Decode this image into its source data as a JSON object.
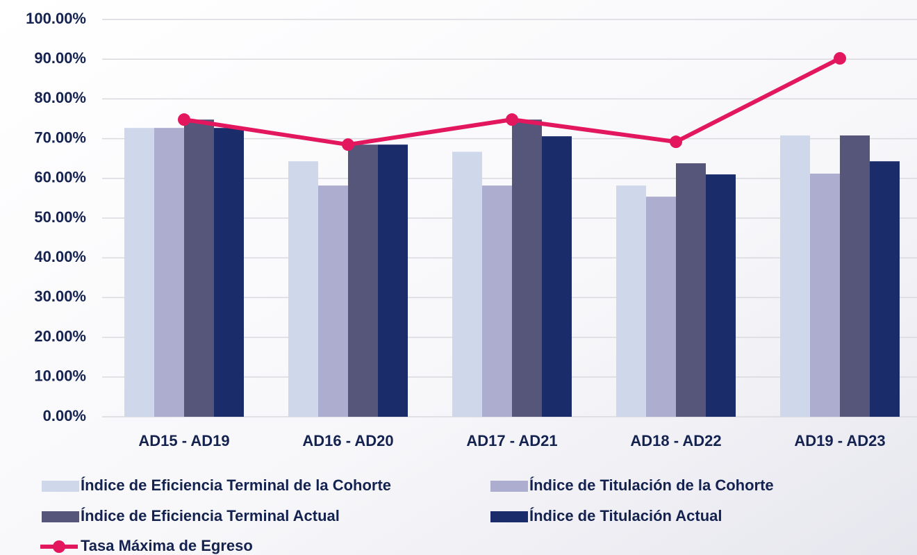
{
  "chart_data": {
    "type": "bar",
    "categories": [
      "AD15 - AD19",
      "AD16 - AD20",
      "AD17 - AD21",
      "AD18 - AD22",
      "AD19 - AD23"
    ],
    "series": [
      {
        "name": "Índice de Eficiencia Terminal de la Cohorte",
        "color": "#cfd8ea",
        "values": [
          72.7,
          64.3,
          66.7,
          58.2,
          70.8
        ]
      },
      {
        "name": "Índice de Titulación de la Cohorte",
        "color": "#adadd0",
        "values": [
          72.7,
          58.2,
          58.2,
          55.4,
          61.2
        ]
      },
      {
        "name": "Índice de Eficiencia Terminal Actual",
        "color": "#56557a",
        "values": [
          74.8,
          68.5,
          74.8,
          63.8,
          70.8
        ]
      },
      {
        "name": "Índice de Titulación Actual",
        "color": "#1b2c6b",
        "values": [
          72.7,
          68.5,
          70.6,
          61.0,
          64.3
        ]
      },
      {
        "name": "Tasa Máxima de Egreso",
        "color": "#e3175e",
        "type": "line",
        "values": [
          74.8,
          68.5,
          74.8,
          69.2,
          90.2
        ]
      }
    ],
    "ylim": [
      0,
      100
    ],
    "yticks": [
      {
        "value": 0,
        "label": "0.00%"
      },
      {
        "value": 10,
        "label": "10.00%"
      },
      {
        "value": 20,
        "label": "20.00%"
      },
      {
        "value": 30,
        "label": "30.00%"
      },
      {
        "value": 40,
        "label": "40.00%"
      },
      {
        "value": 50,
        "label": "50.00%"
      },
      {
        "value": 60,
        "label": "60.00%"
      },
      {
        "value": 70,
        "label": "70.00%"
      },
      {
        "value": 80,
        "label": "80.00%"
      },
      {
        "value": 90,
        "label": "90.00%"
      },
      {
        "value": 100,
        "label": "100.00%"
      }
    ],
    "grid": true
  }
}
